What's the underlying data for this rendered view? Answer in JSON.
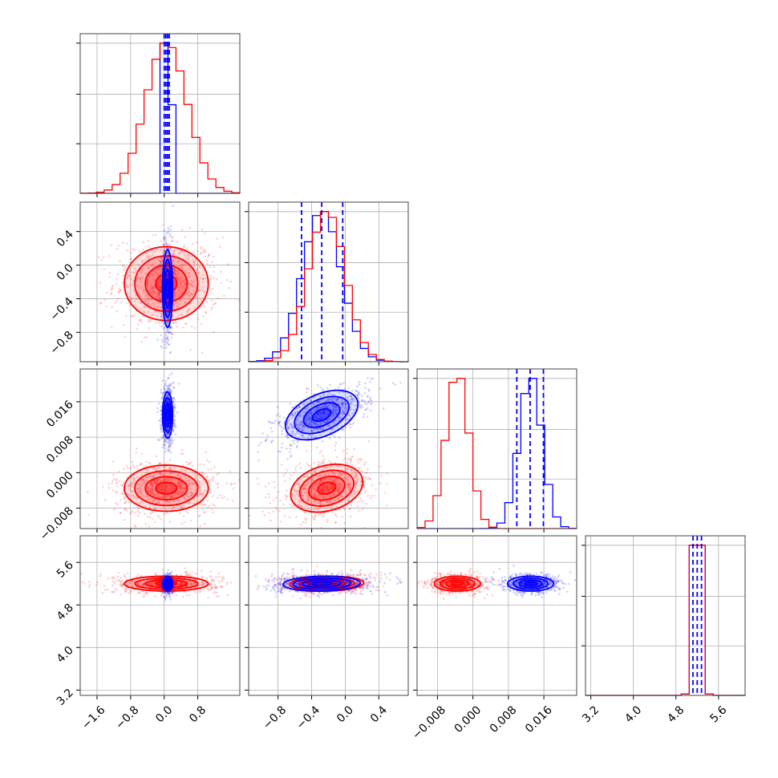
{
  "chart_data": {
    "type": "corner",
    "layout": "lower-triangle",
    "n_params": 4,
    "grid": true,
    "series": [
      {
        "color": "#0000ff"
      },
      {
        "color": "#ff0000"
      }
    ],
    "params": [
      {
        "range": [
          -2.0,
          1.8
        ],
        "ticks": [
          -1.6,
          -0.8,
          0.0,
          0.8
        ],
        "tick_labels": [
          "−1.6",
          "−0.8",
          "0.0",
          "0.8"
        ],
        "blue": {
          "mean": 0.08,
          "std": 0.06,
          "quantiles": [
            0.0,
            0.04,
            0.08,
            0.12
          ]
        },
        "red": {
          "mean": 0.05,
          "std": 0.5
        }
      },
      {
        "range": [
          -1.15,
          0.75
        ],
        "ticks": [
          -0.8,
          -0.4,
          0.0,
          0.4
        ],
        "tick_labels": [
          "−0.8",
          "−0.4",
          "0.0",
          "0.4"
        ],
        "blue": {
          "mean": -0.28,
          "std": 0.23,
          "quantiles": [
            -0.52,
            -0.28,
            -0.03
          ]
        },
        "red": {
          "mean": -0.22,
          "std": 0.22
        }
      },
      {
        "range": [
          -0.0126,
          0.0234
        ],
        "ticks": [
          -0.008,
          0.0,
          0.008,
          0.016
        ],
        "tick_labels": [
          "−0.008",
          "0.000",
          "0.008",
          "0.016"
        ],
        "blue": {
          "mean": 0.013,
          "std": 0.0026,
          "quantiles": [
            0.0099,
            0.0129,
            0.0159
          ]
        },
        "red": {
          "mean": -0.0035,
          "std": 0.0026
        }
      },
      {
        "range": [
          3.1,
          6.1
        ],
        "ticks": [
          3.2,
          4.0,
          4.8,
          5.6
        ],
        "tick_labels": [
          "3.2",
          "4.0",
          "4.8",
          "5.6"
        ],
        "blue": {
          "mean": 5.2,
          "std": 0.07,
          "quantiles": [
            5.12,
            5.2,
            5.28
          ]
        },
        "red": {
          "mean": 5.2,
          "std": 0.07
        }
      }
    ]
  }
}
